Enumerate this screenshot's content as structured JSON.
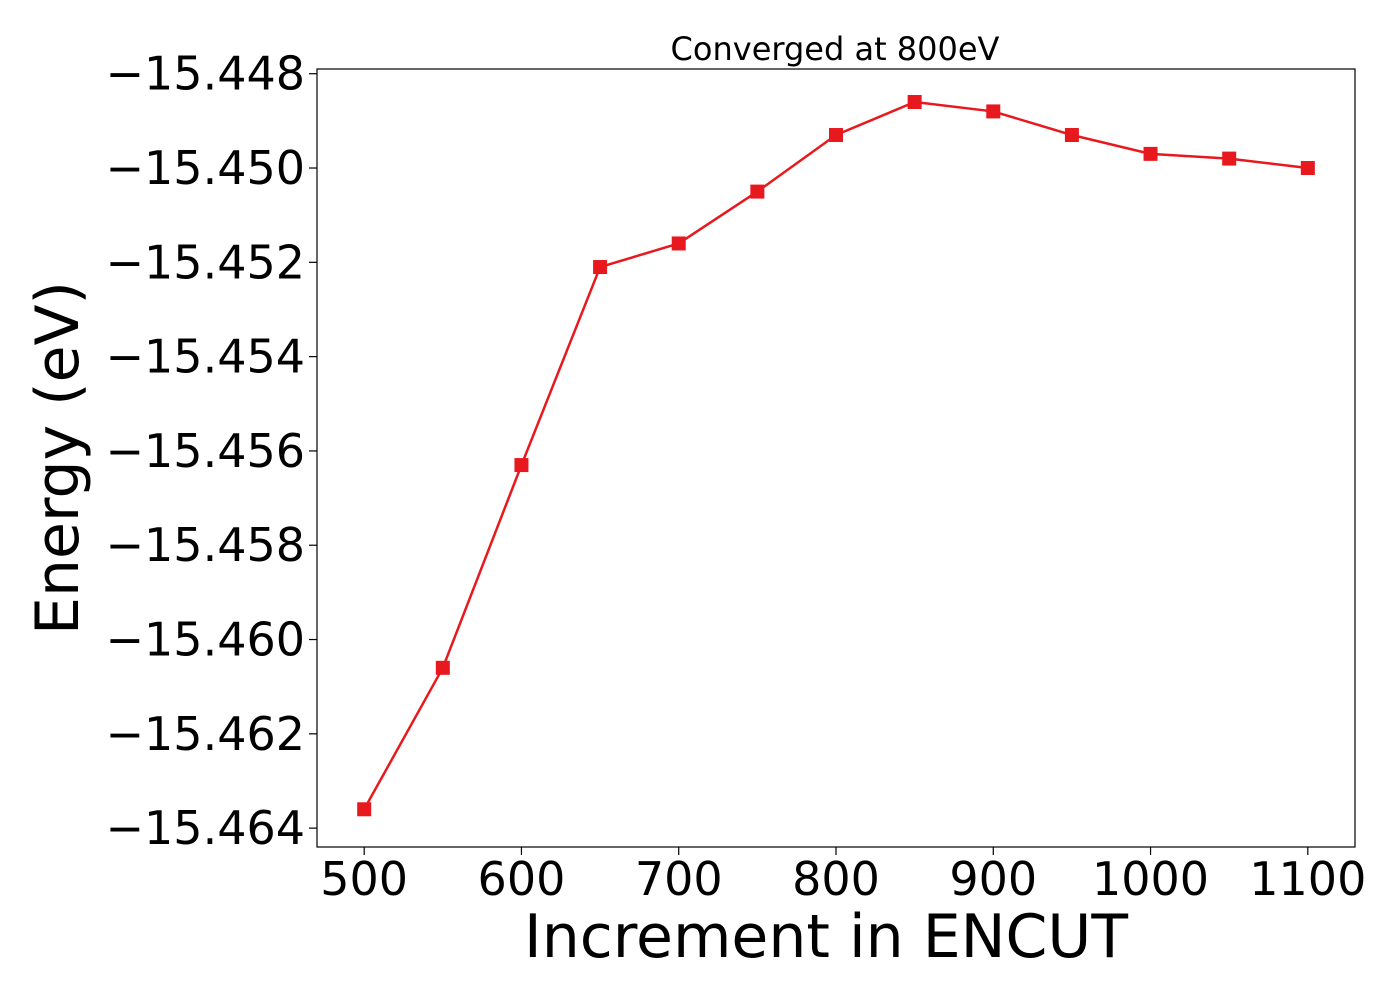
{
  "chart_data": {
    "type": "line",
    "title": "Converged at 800eV",
    "xlabel": "Increment in ENCUT",
    "ylabel": "Energy (eV)",
    "xlim": [
      470,
      1130
    ],
    "ylim": [
      -15.4644,
      -15.4479
    ],
    "x_ticks": [
      500,
      600,
      700,
      800,
      900,
      1000,
      1100
    ],
    "y_ticks": [
      -15.448,
      -15.45,
      -15.452,
      -15.454,
      -15.456,
      -15.458,
      -15.46,
      -15.462,
      -15.464
    ],
    "x_tick_labels": [
      "500",
      "600",
      "700",
      "800",
      "900",
      "1000",
      "1100"
    ],
    "y_tick_labels": [
      "−15.448",
      "−15.450",
      "−15.452",
      "−15.454",
      "−15.456",
      "−15.458",
      "−15.460",
      "−15.462",
      "−15.464"
    ],
    "grid": false,
    "series": [
      {
        "color": "#e8191e",
        "marker": "square",
        "x": [
          500,
          550,
          600,
          650,
          700,
          750,
          800,
          850,
          900,
          950,
          1000,
          1050,
          1100
        ],
        "y": [
          -15.4636,
          -15.4606,
          -15.4563,
          -15.4521,
          -15.4516,
          -15.4505,
          -15.4493,
          -15.4486,
          -15.4488,
          -15.4493,
          -15.4497,
          -15.4498,
          -15.45
        ]
      }
    ]
  }
}
